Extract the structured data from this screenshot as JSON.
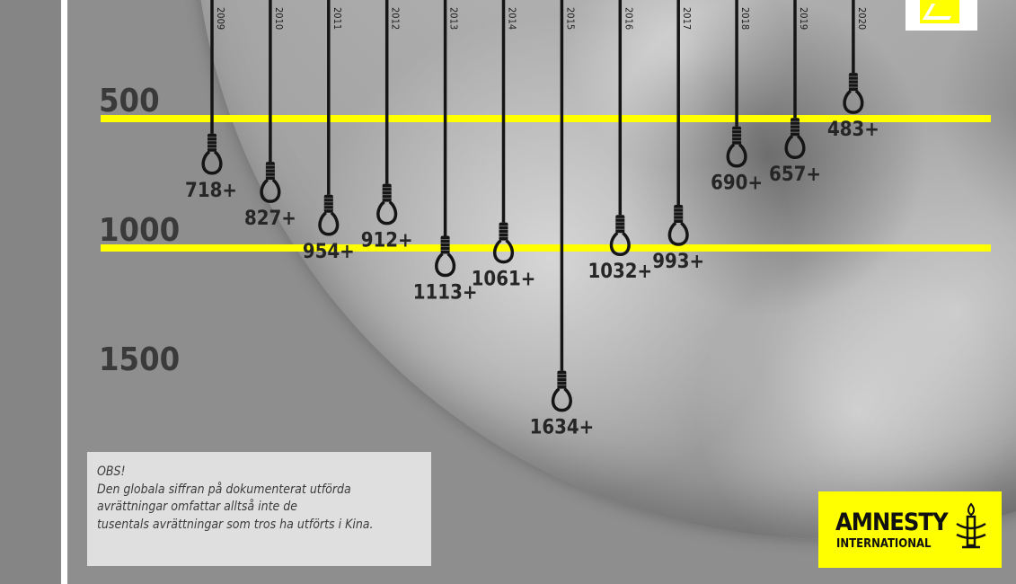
{
  "chart_data": {
    "type": "bar",
    "title": "",
    "xlabel": "",
    "ylabel": "",
    "categories": [
      "2009",
      "2010",
      "2011",
      "2012",
      "2013",
      "2014",
      "2015",
      "2016",
      "2017",
      "2018",
      "2019",
      "2020"
    ],
    "values": [
      718,
      827,
      954,
      912,
      1113,
      1061,
      1634,
      1032,
      993,
      690,
      657,
      483
    ],
    "value_labels": [
      "718+",
      "827+",
      "954+",
      "912+",
      "1113+",
      "1061+",
      "1634+",
      "1032+",
      "993+",
      "690+",
      "657+",
      "483+"
    ],
    "y_ticks": [
      "500",
      "1000",
      "1500"
    ],
    "y_tick_values": [
      500,
      1000,
      1500
    ],
    "reference_lines": [
      500,
      1000
    ],
    "ylim": [
      0,
      1700
    ],
    "y_direction": "downward",
    "grid": false
  },
  "note": {
    "lines": [
      "OBS!",
      "Den globala siffran på dokumenterat utförda",
      "avrättningar omfattar alltså inte de",
      "tusentals avrättningar som tros ha utförts i Kina."
    ]
  },
  "logo": {
    "line1": "AMNESTY",
    "line2": "INTERNATIONAL"
  },
  "colors": {
    "accent": "#ffff00",
    "rope": "#151515",
    "tick_text": "#3a3a3a",
    "panel": "#8e8e8e",
    "note_bg": "#e6e6e6"
  }
}
